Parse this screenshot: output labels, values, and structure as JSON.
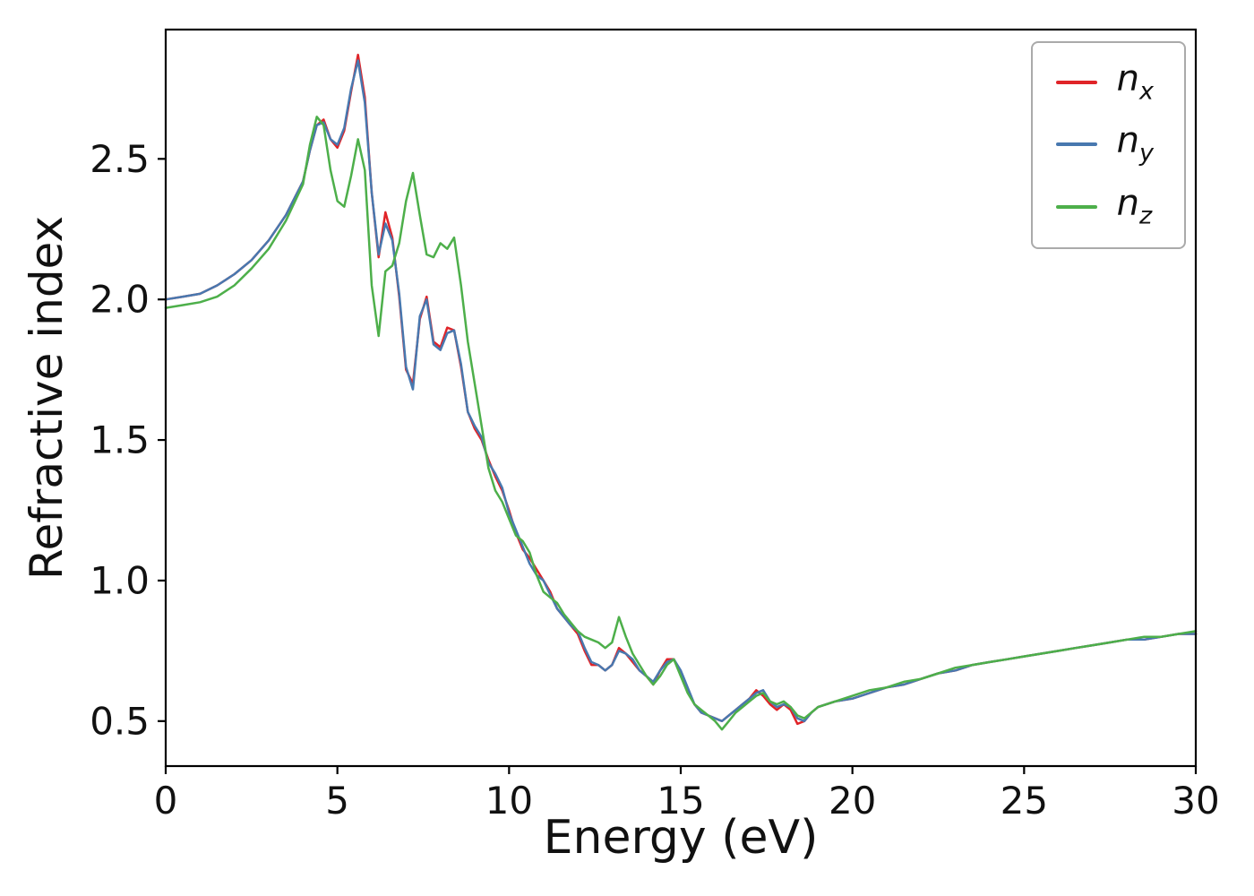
{
  "figure": {
    "background": "#ffffff"
  },
  "chart_data": {
    "type": "line",
    "title": "",
    "xlabel": "Energy (eV)",
    "ylabel": "Refractive index",
    "xlim": [
      0,
      30
    ],
    "ylim": [
      0.34,
      2.96
    ],
    "grid": false,
    "legend_position": "upper right",
    "xticks": [
      0,
      5,
      10,
      15,
      20,
      25,
      30
    ],
    "xtick_labels": [
      "0",
      "5",
      "10",
      "15",
      "20",
      "25",
      "30"
    ],
    "yticks": [
      0.5,
      1.0,
      1.5,
      2.0,
      2.5
    ],
    "ytick_labels": [
      "0.5",
      "1.0",
      "1.5",
      "2.0",
      "2.5"
    ],
    "x": [
      0,
      0.5,
      1,
      1.5,
      2,
      2.5,
      3,
      3.5,
      4,
      4.2,
      4.4,
      4.6,
      4.8,
      5,
      5.2,
      5.4,
      5.6,
      5.8,
      6,
      6.2,
      6.4,
      6.6,
      6.8,
      7,
      7.2,
      7.4,
      7.6,
      7.8,
      8,
      8.2,
      8.4,
      8.6,
      8.8,
      9,
      9.2,
      9.4,
      9.6,
      9.8,
      10,
      10.2,
      10.4,
      10.6,
      10.8,
      11,
      11.2,
      11.4,
      11.6,
      11.8,
      12,
      12.2,
      12.4,
      12.6,
      12.8,
      13,
      13.2,
      13.4,
      13.6,
      13.8,
      14,
      14.2,
      14.4,
      14.6,
      14.8,
      15,
      15.2,
      15.4,
      15.6,
      15.8,
      16,
      16.2,
      16.4,
      16.6,
      16.8,
      17,
      17.2,
      17.4,
      17.6,
      17.8,
      18,
      18.2,
      18.4,
      18.6,
      18.8,
      19,
      19.5,
      20,
      20.5,
      21,
      21.5,
      22,
      22.5,
      23,
      23.5,
      24,
      24.5,
      25,
      25.5,
      26,
      26.5,
      27,
      27.5,
      28,
      28.5,
      29,
      29.5,
      30
    ],
    "series": [
      {
        "name": "n_x",
        "label_main": "n",
        "label_sub": "x",
        "color": "#e02428",
        "values": [
          2.0,
          2.01,
          2.02,
          2.05,
          2.09,
          2.14,
          2.21,
          2.3,
          2.42,
          2.53,
          2.62,
          2.64,
          2.57,
          2.54,
          2.6,
          2.74,
          2.87,
          2.72,
          2.38,
          2.15,
          2.31,
          2.22,
          2.01,
          1.75,
          1.7,
          1.93,
          2.01,
          1.85,
          1.83,
          1.9,
          1.89,
          1.76,
          1.6,
          1.54,
          1.5,
          1.43,
          1.37,
          1.32,
          1.25,
          1.17,
          1.11,
          1.08,
          1.04,
          1.0,
          0.96,
          0.9,
          0.87,
          0.84,
          0.81,
          0.75,
          0.7,
          0.7,
          0.68,
          0.7,
          0.76,
          0.74,
          0.71,
          0.68,
          0.66,
          0.63,
          0.68,
          0.72,
          0.72,
          0.67,
          0.61,
          0.56,
          0.53,
          0.52,
          0.51,
          0.5,
          0.52,
          0.54,
          0.56,
          0.58,
          0.61,
          0.59,
          0.56,
          0.54,
          0.56,
          0.54,
          0.49,
          0.5,
          0.53,
          0.55,
          0.57,
          0.58,
          0.6,
          0.62,
          0.63,
          0.65,
          0.67,
          0.68,
          0.7,
          0.71,
          0.72,
          0.73,
          0.74,
          0.75,
          0.76,
          0.77,
          0.78,
          0.79,
          0.79,
          0.8,
          0.81,
          0.81
        ]
      },
      {
        "name": "n_y",
        "label_main": "n",
        "label_sub": "y",
        "color": "#4878af",
        "values": [
          2.0,
          2.01,
          2.02,
          2.05,
          2.09,
          2.14,
          2.21,
          2.3,
          2.42,
          2.53,
          2.62,
          2.63,
          2.57,
          2.55,
          2.61,
          2.75,
          2.85,
          2.7,
          2.38,
          2.16,
          2.27,
          2.21,
          2.02,
          1.76,
          1.68,
          1.94,
          2.0,
          1.84,
          1.82,
          1.88,
          1.89,
          1.77,
          1.6,
          1.55,
          1.51,
          1.42,
          1.38,
          1.33,
          1.24,
          1.18,
          1.12,
          1.06,
          1.02,
          1.0,
          0.95,
          0.9,
          0.87,
          0.84,
          0.82,
          0.76,
          0.71,
          0.7,
          0.68,
          0.7,
          0.75,
          0.74,
          0.72,
          0.68,
          0.66,
          0.64,
          0.68,
          0.71,
          0.72,
          0.68,
          0.62,
          0.56,
          0.53,
          0.52,
          0.51,
          0.5,
          0.52,
          0.54,
          0.56,
          0.58,
          0.6,
          0.61,
          0.57,
          0.55,
          0.56,
          0.55,
          0.51,
          0.5,
          0.53,
          0.55,
          0.57,
          0.58,
          0.6,
          0.62,
          0.63,
          0.65,
          0.67,
          0.68,
          0.7,
          0.71,
          0.72,
          0.73,
          0.74,
          0.75,
          0.76,
          0.77,
          0.78,
          0.79,
          0.79,
          0.8,
          0.81,
          0.81
        ]
      },
      {
        "name": "n_z",
        "label_main": "n",
        "label_sub": "z",
        "color": "#4daf4a",
        "values": [
          1.97,
          1.98,
          1.99,
          2.01,
          2.05,
          2.11,
          2.18,
          2.28,
          2.41,
          2.55,
          2.65,
          2.62,
          2.46,
          2.35,
          2.33,
          2.44,
          2.57,
          2.46,
          2.05,
          1.87,
          2.1,
          2.12,
          2.2,
          2.35,
          2.45,
          2.3,
          2.16,
          2.15,
          2.2,
          2.18,
          2.22,
          2.05,
          1.85,
          1.7,
          1.55,
          1.4,
          1.32,
          1.28,
          1.22,
          1.16,
          1.14,
          1.1,
          1.02,
          0.96,
          0.94,
          0.92,
          0.88,
          0.85,
          0.82,
          0.8,
          0.79,
          0.78,
          0.76,
          0.78,
          0.87,
          0.8,
          0.74,
          0.7,
          0.66,
          0.63,
          0.66,
          0.7,
          0.72,
          0.66,
          0.6,
          0.56,
          0.54,
          0.52,
          0.5,
          0.47,
          0.5,
          0.53,
          0.55,
          0.57,
          0.59,
          0.6,
          0.57,
          0.56,
          0.57,
          0.55,
          0.52,
          0.51,
          0.53,
          0.55,
          0.57,
          0.59,
          0.61,
          0.62,
          0.64,
          0.65,
          0.67,
          0.69,
          0.7,
          0.71,
          0.72,
          0.73,
          0.74,
          0.75,
          0.76,
          0.77,
          0.78,
          0.79,
          0.8,
          0.8,
          0.81,
          0.82
        ]
      }
    ]
  }
}
